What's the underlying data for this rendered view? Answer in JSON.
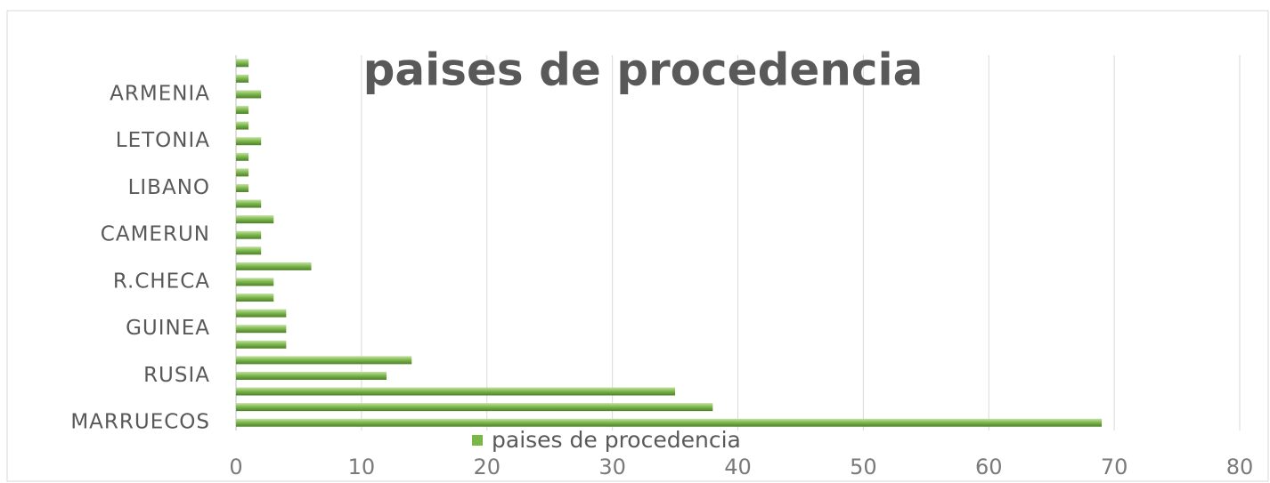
{
  "chart_data": {
    "type": "barh",
    "title": "paises de procedencia",
    "categories": [
      "MARRUECOS",
      null,
      null,
      "RUSIA",
      null,
      null,
      "GUINEA",
      null,
      null,
      "R.CHECA",
      null,
      null,
      "CAMERUN",
      null,
      null,
      "LIBANO",
      null,
      null,
      "LETONIA",
      null,
      null,
      "ARMENIA",
      null,
      null
    ],
    "series": [
      {
        "name": "paises de procedencia",
        "color": "#7ab648",
        "values": [
          69,
          38,
          35,
          12,
          14,
          4,
          4,
          4,
          3,
          3,
          6,
          2,
          2,
          3,
          2,
          1,
          1,
          1,
          2,
          1,
          1,
          2,
          1,
          1
        ]
      }
    ],
    "xlim": [
      0,
      80
    ],
    "xticks": [
      0,
      10,
      20,
      30,
      40,
      50,
      60,
      70,
      80
    ],
    "grid": true,
    "legend": "bottom"
  }
}
